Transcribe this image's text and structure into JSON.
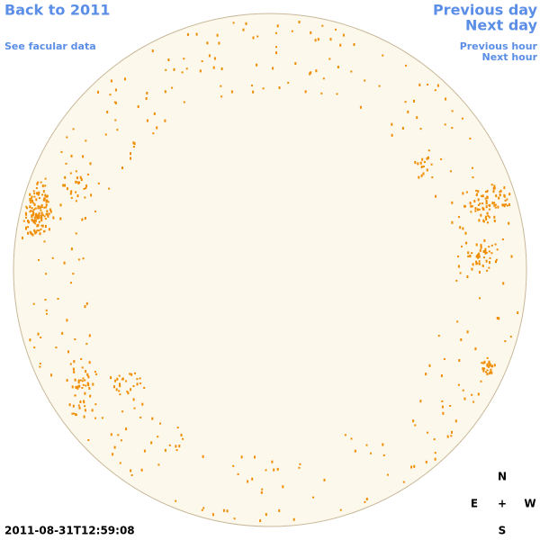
{
  "nav": {
    "back": "Back to 2011",
    "facular": "See facular data",
    "previous_day": "Previous day",
    "next_day": "Next day",
    "previous_hour": "Previous hour",
    "next_hour": "Next hour"
  },
  "compass": {
    "north": "N",
    "east": "E",
    "center": "+",
    "west": "W",
    "south": "S"
  },
  "timestamp": "2011-08-31T12:59:08"
}
